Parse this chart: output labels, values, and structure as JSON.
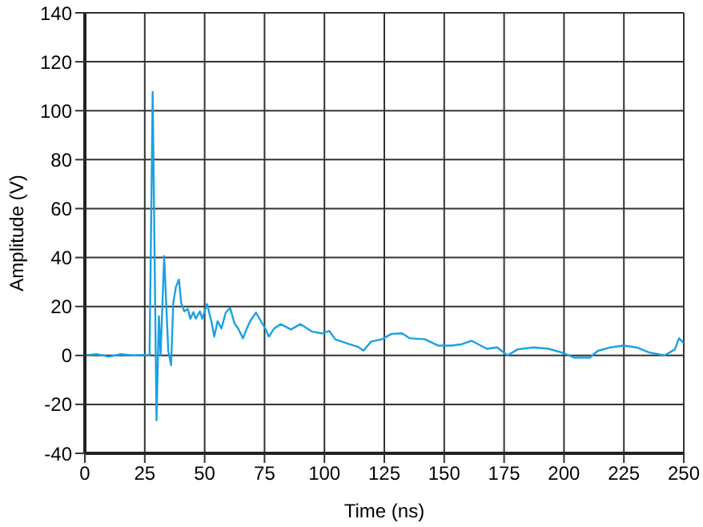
{
  "chart_data": {
    "type": "line",
    "xlabel": "Time (ns)",
    "ylabel": "Amplitude (V)",
    "xlim": [
      0,
      250
    ],
    "xticks": [
      0,
      25,
      50,
      75,
      100,
      125,
      150,
      175,
      200,
      225,
      250
    ],
    "ylim": [
      -40,
      140
    ],
    "yticks": [
      -40,
      -20,
      0,
      20,
      40,
      60,
      80,
      100,
      120,
      140
    ],
    "grid": true,
    "legend": false,
    "marker": "none",
    "line_style": "solid",
    "series": [
      {
        "color": "#1ba1e2",
        "x": [
          0,
          5,
          10,
          15,
          20,
          25,
          27,
          28.3,
          29.9,
          30.9,
          31.6,
          33.1,
          34.8,
          36,
          36.9,
          38,
          39.3,
          40.2,
          41.5,
          43,
          44,
          45.3,
          46.3,
          48,
          49,
          51,
          52.8,
          54,
          55.4,
          57,
          58.8,
          60.6,
          62.5,
          64,
          66,
          67.6,
          69,
          71.4,
          73.5,
          75.3,
          76.8,
          79,
          81.7,
          86,
          90,
          94.7,
          99,
          102,
          104.5,
          109.8,
          114,
          116.3,
          119.5,
          124,
          128,
          132.4,
          135.6,
          142,
          147.5,
          152.9,
          157,
          161.4,
          167.8,
          172.1,
          176.4,
          180.7,
          187.2,
          193.6,
          199,
          204.4,
          210.8,
          214,
          219.5,
          224.8,
          230.2,
          235.6,
          242,
          246.3,
          248,
          250
        ],
        "values": [
          0,
          0.5,
          -0.5,
          0.5,
          0,
          0.2,
          0,
          107.7,
          -26.5,
          16,
          0,
          40.6,
          2,
          -4,
          21.5,
          28,
          31,
          21.5,
          18,
          19,
          15,
          17.7,
          15,
          18,
          15,
          21,
          14,
          7.7,
          14,
          11,
          17.5,
          19.5,
          13,
          11,
          7,
          11,
          14,
          17.5,
          14,
          11,
          7.7,
          11,
          12.8,
          10.6,
          12.8,
          9.8,
          9,
          10,
          6.6,
          4.8,
          3.5,
          2,
          5.7,
          6.6,
          8.8,
          9,
          7,
          6.6,
          4,
          4,
          4.5,
          6,
          2.7,
          3.3,
          0,
          2.5,
          3.3,
          2.7,
          1.2,
          -0.9,
          -0.9,
          1.8,
          3.3,
          4,
          3.3,
          1.2,
          0,
          2.5,
          7,
          5
        ]
      }
    ]
  }
}
